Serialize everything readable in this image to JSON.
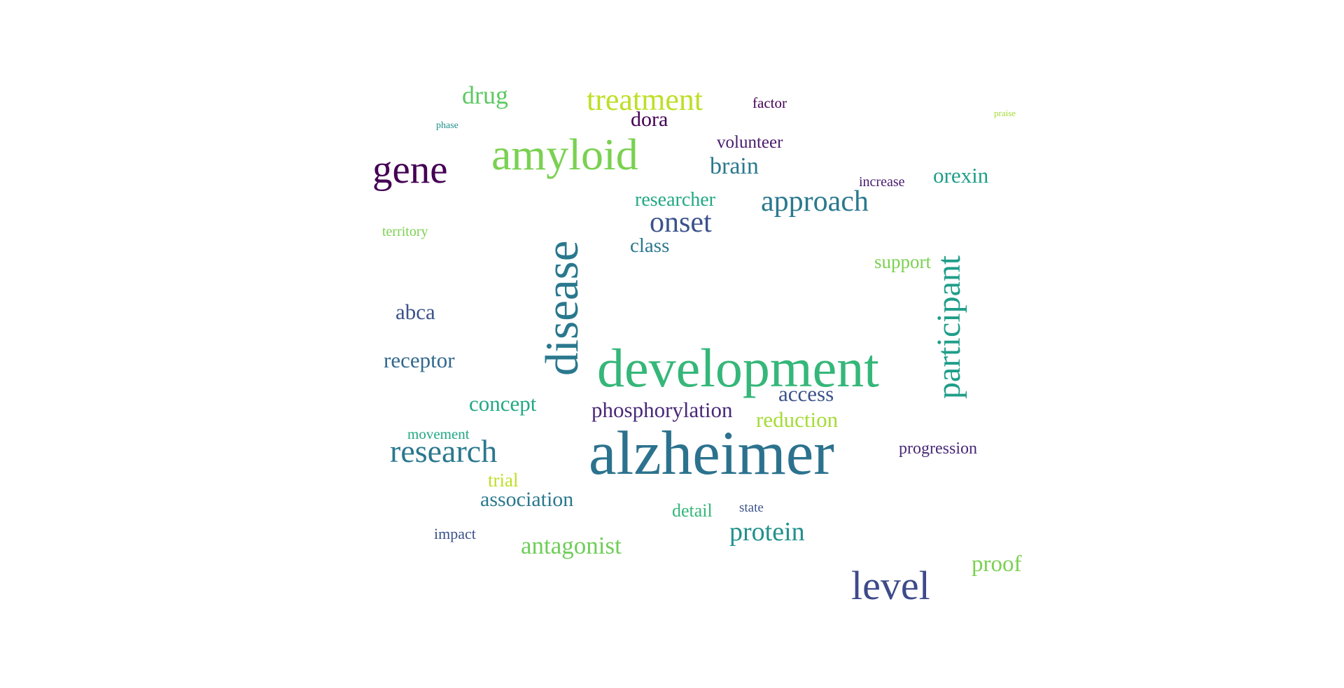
{
  "words": [
    {
      "text": "drug",
      "color": "#5ec962"
    },
    {
      "text": "treatment",
      "color": "#bddf26"
    },
    {
      "text": "factor",
      "color": "#440154"
    },
    {
      "text": "praise",
      "color": "#a5db36"
    },
    {
      "text": "phase",
      "color": "#21918c"
    },
    {
      "text": "dora",
      "color": "#440154"
    },
    {
      "text": "volunteer",
      "color": "#481a6c"
    },
    {
      "text": "gene",
      "color": "#440154"
    },
    {
      "text": "amyloid",
      "color": "#7ad151"
    },
    {
      "text": "brain",
      "color": "#2a788e"
    },
    {
      "text": "increase",
      "color": "#481a6c"
    },
    {
      "text": "orexin",
      "color": "#1f9e89"
    },
    {
      "text": "researcher",
      "color": "#22a884"
    },
    {
      "text": "approach",
      "color": "#2a788e"
    },
    {
      "text": "territory",
      "color": "#7ad151"
    },
    {
      "text": "onset",
      "color": "#3b528b"
    },
    {
      "text": "class",
      "color": "#2a788e"
    },
    {
      "text": "support",
      "color": "#7ad151"
    },
    {
      "text": "disease",
      "color": "#2a788e"
    },
    {
      "text": "participant",
      "color": "#1f9e89"
    },
    {
      "text": "abca",
      "color": "#3b528b"
    },
    {
      "text": "receptor",
      "color": "#31688e"
    },
    {
      "text": "development",
      "color": "#35b779"
    },
    {
      "text": "access",
      "color": "#3b528b"
    },
    {
      "text": "concept",
      "color": "#22a884"
    },
    {
      "text": "phosphorylation",
      "color": "#482878"
    },
    {
      "text": "reduction",
      "color": "#a5db36"
    },
    {
      "text": "movement",
      "color": "#22a884"
    },
    {
      "text": "progression",
      "color": "#482878"
    },
    {
      "text": "research",
      "color": "#2a788e"
    },
    {
      "text": "alzheimer",
      "color": "#2c728e"
    },
    {
      "text": "trial",
      "color": "#bddf26"
    },
    {
      "text": "association",
      "color": "#2a788e"
    },
    {
      "text": "detail",
      "color": "#35b779"
    },
    {
      "text": "state",
      "color": "#3b528b"
    },
    {
      "text": "impact",
      "color": "#3b528b"
    },
    {
      "text": "protein",
      "color": "#21918c"
    },
    {
      "text": "antagonist",
      "color": "#6ece58"
    },
    {
      "text": "level",
      "color": "#3e4a89"
    },
    {
      "text": "proof",
      "color": "#7ad151"
    }
  ]
}
